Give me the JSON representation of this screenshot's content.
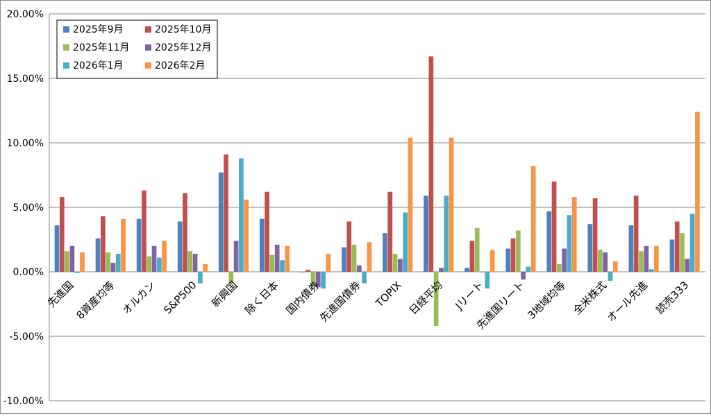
{
  "chart_data": {
    "type": "bar",
    "categories": [
      "先進国",
      "8資産均等",
      "オルカン",
      "S&P500",
      "新興国",
      "除く日本",
      "国内債券",
      "先進国債券",
      "TOPIX",
      "日経平均",
      "Jリート",
      "先進国リート",
      "3地域均等",
      "全米株式",
      "オール先進",
      "読売333"
    ],
    "series": [
      {
        "name": "2025年9月",
        "color": "#4F81BD",
        "values": [
          3.6,
          2.6,
          4.1,
          3.9,
          7.7,
          4.1,
          -0.05,
          1.9,
          3.0,
          5.9,
          0.3,
          1.8,
          4.7,
          3.7,
          3.6,
          2.5
        ]
      },
      {
        "name": "2025年10月",
        "color": "#C0504D",
        "values": [
          5.8,
          4.3,
          6.3,
          6.1,
          9.1,
          6.2,
          0.15,
          3.9,
          6.2,
          16.7,
          2.4,
          2.6,
          7.0,
          5.7,
          5.9,
          3.9
        ]
      },
      {
        "name": "2025年11月",
        "color": "#9BBB59",
        "values": [
          1.6,
          1.5,
          1.2,
          1.6,
          -0.9,
          1.3,
          -1.1,
          2.1,
          1.4,
          -4.2,
          3.4,
          3.2,
          0.6,
          1.7,
          1.6,
          3.0
        ]
      },
      {
        "name": "2025年12月",
        "color": "#8064A2",
        "values": [
          2.0,
          0.7,
          2.0,
          1.4,
          2.4,
          2.1,
          -1.2,
          0.5,
          1.0,
          0.3,
          0.0,
          -0.6,
          1.8,
          1.5,
          2.0,
          1.0
        ]
      },
      {
        "name": "2026年1月",
        "color": "#4BACC6",
        "values": [
          -0.1,
          1.4,
          1.1,
          -0.9,
          8.8,
          0.9,
          -1.3,
          -0.9,
          4.6,
          5.9,
          -1.3,
          0.4,
          4.4,
          -0.7,
          0.2,
          4.5
        ]
      },
      {
        "name": "2026年2月",
        "color": "#F79646",
        "values": [
          1.5,
          4.1,
          2.4,
          0.6,
          5.6,
          2.0,
          1.4,
          2.3,
          10.4,
          10.4,
          1.7,
          8.2,
          5.8,
          0.8,
          2.0,
          12.4
        ]
      }
    ],
    "ylim": [
      -10,
      20
    ],
    "yticks": [
      "-10.00%",
      "-5.00%",
      "0.00%",
      "5.00%",
      "10.00%",
      "15.00%",
      "20.00%"
    ],
    "grid": true,
    "legend": "top-left"
  }
}
